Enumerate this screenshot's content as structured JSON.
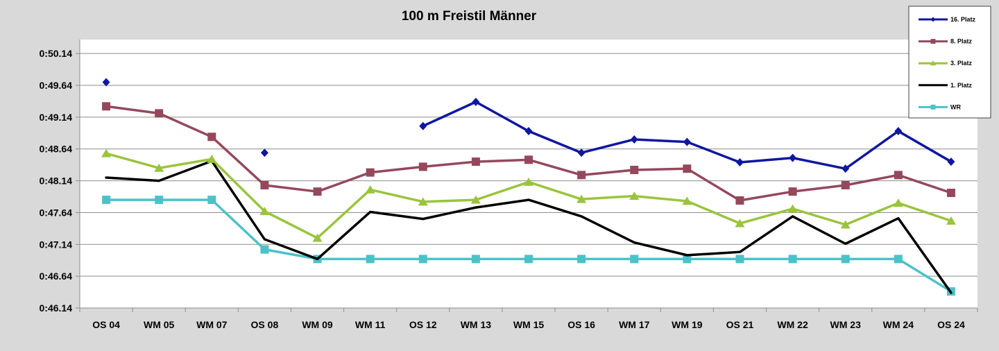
{
  "chart_data": {
    "type": "line",
    "title": "100 m Freistil Männer",
    "xlabel": "",
    "ylabel": "",
    "categories": [
      "OS 04",
      "WM 05",
      "WM 07",
      "OS 08",
      "WM 09",
      "WM 11",
      "OS 12",
      "WM 13",
      "WM 15",
      "OS 16",
      "WM 17",
      "WM 19",
      "OS 21",
      "WM 22",
      "WM 23",
      "WM 24",
      "OS 24"
    ],
    "y_tick_labels": [
      "0:46.14",
      "0:46.64",
      "0:47.14",
      "0:47.64",
      "0:48.14",
      "0:48.64",
      "0:49.14",
      "0:49.64",
      "0:50.14"
    ],
    "ylim": [
      46.14,
      50.14
    ],
    "grid": true,
    "legend_position": "top-right",
    "series": [
      {
        "name": "16. Platz",
        "color": "#0f17a0",
        "marker": "diamond",
        "values": [
          49.69,
          null,
          null,
          48.58,
          null,
          null,
          49.0,
          49.38,
          48.92,
          48.58,
          48.79,
          48.75,
          48.43,
          48.5,
          48.33,
          48.92,
          48.44
        ]
      },
      {
        "name": "8. Platz",
        "color": "#95485c",
        "marker": "square",
        "values": [
          49.31,
          49.2,
          48.83,
          48.07,
          47.97,
          48.27,
          48.36,
          48.44,
          48.47,
          48.23,
          48.31,
          48.33,
          47.83,
          47.97,
          48.07,
          48.23,
          47.95
        ]
      },
      {
        "name": "3. Platz",
        "color": "#9ac43c",
        "marker": "triangle",
        "values": [
          48.57,
          48.34,
          48.48,
          47.66,
          47.24,
          48.0,
          47.81,
          47.84,
          48.12,
          47.85,
          47.9,
          47.82,
          47.47,
          47.7,
          47.45,
          47.79,
          47.51
        ]
      },
      {
        "name": "1. Platz",
        "color": "#000000",
        "marker": "none",
        "values": [
          48.19,
          48.14,
          48.45,
          47.22,
          46.91,
          47.65,
          47.54,
          47.72,
          47.84,
          47.58,
          47.17,
          46.97,
          47.02,
          47.58,
          47.15,
          47.55,
          46.38
        ]
      },
      {
        "name": "WR",
        "color": "#4bc2c8",
        "marker": "square",
        "values": [
          47.84,
          47.84,
          47.84,
          47.06,
          46.91,
          46.91,
          46.91,
          46.91,
          46.91,
          46.91,
          46.91,
          46.91,
          46.91,
          46.91,
          46.91,
          46.91,
          46.4
        ]
      }
    ]
  }
}
